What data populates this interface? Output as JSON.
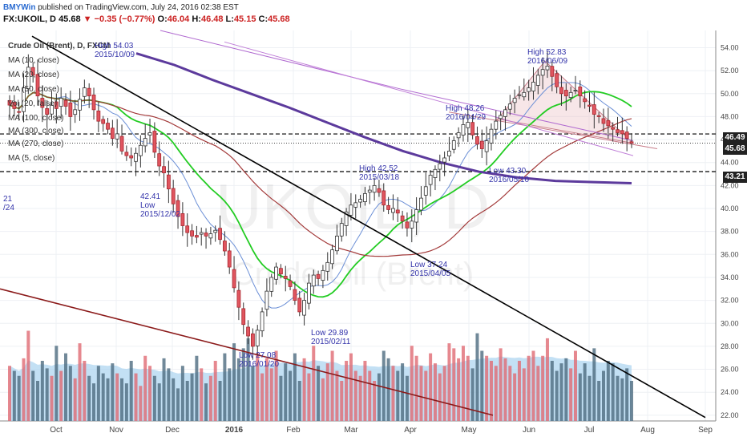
{
  "header": {
    "brand": "BMYWin",
    "published": "published on TradingView.com, July 24, 2016 02:38 EST",
    "symbol": "FX:UKOIL, D",
    "last": "45.68",
    "change_arrow": "▼",
    "change": "−0.35 (−0.77%)",
    "open_label": "O:",
    "open": "46.04",
    "high_label": "H:",
    "high": "46.48",
    "low_label": "L:",
    "low": "45.15",
    "close_label": "C:",
    "close": "45.68"
  },
  "legend": {
    "series_title": "Crude Oil (Brent), D, FXCM",
    "studies": [
      "MA (10, close)",
      "MA (20, close)",
      "MA (50, close)",
      "Vol (20, false)",
      "MA (100, close)",
      "MA (300, close)",
      "MA (270, close)",
      "MA (5, close)"
    ]
  },
  "watermark": {
    "symbol": "UKOIL, D",
    "name": "Crude Oil (Brent)"
  },
  "price_tags": [
    {
      "value": "46.49",
      "color": "#222222"
    },
    {
      "value": "45.68",
      "color": "#222222"
    },
    {
      "value": "43.21",
      "color": "#222222"
    }
  ],
  "annotations": [
    {
      "text1": "High 54.03",
      "text2": "2015/10/09"
    },
    {
      "text1": "42.41",
      "text2": "Low",
      "text3": "2015/12/02"
    },
    {
      "text1": "Low 27.08",
      "text2": "2016/01/20"
    },
    {
      "text1": "Low 29.89",
      "text2": "2015/02/11"
    },
    {
      "text1": "High 42.52",
      "text2": "2015/03/18"
    },
    {
      "text1": "Low 37.24",
      "text2": "2015/04/05"
    },
    {
      "text1": "High 48.26",
      "text2": "2016/04/29"
    },
    {
      "text1": "Low 43.30",
      "text2": "2016/05/10"
    },
    {
      "text1": "High 52.83",
      "text2": "2016/06/09"
    },
    {
      "text1": "21",
      "text2": "/24"
    }
  ],
  "chart_data": {
    "type": "candlestick",
    "title": "Crude Oil (Brent), D, FXCM",
    "xlabel": "",
    "ylabel": "",
    "x_ticks": [
      "Oct",
      "Nov",
      "Dec",
      "2016",
      "Feb",
      "Mar",
      "Apr",
      "May",
      "Jun",
      "Jul",
      "Aug",
      "Sep"
    ],
    "y_ticks": [
      "22.00",
      "24.00",
      "26.00",
      "28.00",
      "30.00",
      "32.00",
      "34.00",
      "36.00",
      "38.00",
      "40.00",
      "42.00",
      "44.00",
      "46.00",
      "48.00",
      "50.00",
      "52.00",
      "54.00"
    ],
    "ylim": [
      21.5,
      55.5
    ],
    "grid": true,
    "close_approx": [
      49.0,
      48.7,
      48.4,
      50.5,
      52.3,
      51.6,
      49.8,
      48.8,
      48.2,
      49.0,
      48.7,
      49.6,
      48.9,
      48.0,
      48.6,
      49.5,
      50.5,
      49.8,
      48.6,
      47.6,
      47.4,
      46.9,
      46.1,
      46.5,
      45.0,
      44.6,
      44.4,
      44.8,
      45.5,
      46.1,
      46.6,
      44.9,
      43.7,
      43.1,
      41.7,
      40.4,
      39.3,
      38.5,
      37.9,
      37.6,
      37.5,
      37.9,
      37.6,
      37.8,
      38.1,
      37.3,
      36.3,
      34.9,
      33.1,
      31.4,
      29.9,
      28.9,
      28.0,
      29.4,
      31.0,
      32.8,
      34.0,
      34.9,
      34.3,
      33.9,
      33.2,
      32.0,
      31.0,
      32.0,
      33.5,
      34.2,
      33.9,
      34.6,
      35.3,
      36.4,
      37.6,
      38.7,
      39.7,
      40.3,
      40.5,
      40.8,
      41.3,
      41.6,
      42.0,
      41.4,
      40.3,
      39.9,
      40.0,
      39.6,
      38.9,
      38.3,
      38.9,
      39.9,
      40.9,
      41.9,
      42.9,
      43.4,
      43.9,
      44.4,
      45.0,
      45.9,
      46.6,
      47.3,
      47.5,
      46.4,
      45.6,
      45.2,
      45.9,
      46.9,
      47.6,
      48.1,
      48.6,
      49.1,
      49.6,
      49.9,
      50.1,
      50.5,
      51.0,
      51.6,
      52.1,
      52.4,
      51.5,
      50.6,
      50.0,
      49.8,
      50.1,
      50.3,
      49.8,
      49.3,
      48.9,
      48.2,
      48.0,
      47.4,
      47.2,
      46.9,
      46.6,
      46.5,
      46.1,
      45.7
    ],
    "volume_approx": [
      22,
      20,
      18,
      25,
      36,
      20,
      16,
      24,
      21,
      18,
      30,
      20,
      27,
      22,
      17,
      31,
      24,
      18,
      15,
      22,
      19,
      17,
      23,
      19,
      17,
      15,
      24,
      19,
      14,
      26,
      22,
      18,
      15,
      25,
      21,
      17,
      13,
      22,
      16,
      19,
      26,
      21,
      15,
      18,
      24,
      16,
      27,
      21,
      31,
      25,
      29,
      33,
      22,
      27,
      19,
      25,
      21,
      28,
      18,
      23,
      20,
      27,
      16,
      25,
      19,
      30,
      22,
      17,
      23,
      28,
      20,
      16,
      24,
      27,
      20,
      18,
      24,
      20,
      16,
      19,
      28,
      25,
      22,
      20,
      23,
      18,
      30,
      26,
      22,
      20,
      27,
      23,
      19,
      22,
      31,
      29,
      25,
      30,
      26,
      21,
      35,
      28,
      26,
      24,
      22,
      29,
      25,
      22,
      19,
      24,
      21,
      26,
      28,
      22,
      26,
      33,
      24,
      20,
      23,
      25,
      21,
      28,
      19,
      23,
      18,
      29,
      16,
      20,
      24,
      23,
      18,
      17,
      21,
      16
    ],
    "series": [
      {
        "name": "MA (10, close)",
        "color": "#6b8fd6"
      },
      {
        "name": "MA (20, close)",
        "color": "#22cc22"
      },
      {
        "name": "MA (50, close)",
        "color": "#a33a3a"
      },
      {
        "name": "MA (100, close)",
        "color": "#5c3a9c"
      },
      {
        "name": "MA (300, close)",
        "color": "#b06ad0"
      }
    ],
    "trendlines": [
      {
        "y_start": 55.0,
        "y_end": 21.8,
        "color": "#000000"
      },
      {
        "y_start": 33.0,
        "y_end": 22.0,
        "color": "#8b1a1a"
      }
    ],
    "horizontal_levels": [
      46.49,
      45.68,
      43.21
    ],
    "triangle": {
      "color": "#d9a0a8",
      "high": 52.83
    }
  }
}
